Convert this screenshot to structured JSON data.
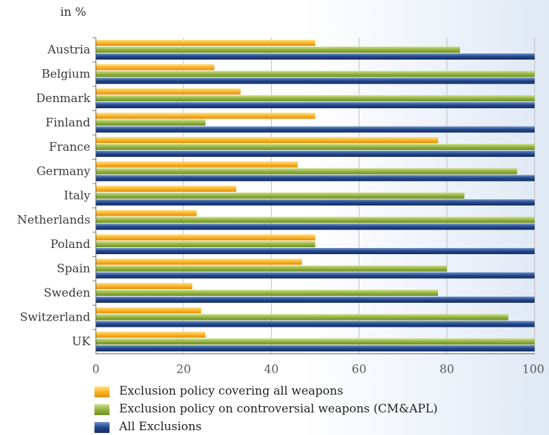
{
  "chart_data": {
    "type": "bar",
    "orientation": "horizontal",
    "unit_label": "in %",
    "categories": [
      "Austria",
      "Belgium",
      "Denmark",
      "Finland",
      "France",
      "Germany",
      "Italy",
      "Netherlands",
      "Poland",
      "Spain",
      "Sweden",
      "Switzerland",
      "UK"
    ],
    "series": [
      {
        "name": "Exclusion policy covering all weapons",
        "color": "#f5a623",
        "values": [
          50,
          27,
          33,
          50,
          78,
          46,
          32,
          23,
          50,
          47,
          22,
          24,
          25
        ]
      },
      {
        "name": "Exclusion policy on controversial weapons (CM&APL)",
        "color": "#8fae3c",
        "values": [
          83,
          100,
          100,
          25,
          100,
          96,
          84,
          100,
          50,
          80,
          78,
          94,
          100
        ]
      },
      {
        "name": "All Exclusions",
        "color": "#1f3f7f",
        "values": [
          100,
          100,
          100,
          100,
          100,
          100,
          100,
          100,
          100,
          100,
          100,
          100,
          100
        ]
      }
    ],
    "xlim": [
      0,
      100
    ],
    "xticks": [
      0,
      20,
      40,
      60,
      80,
      100
    ],
    "grid": "vertical",
    "legend_position": "bottom-left"
  }
}
